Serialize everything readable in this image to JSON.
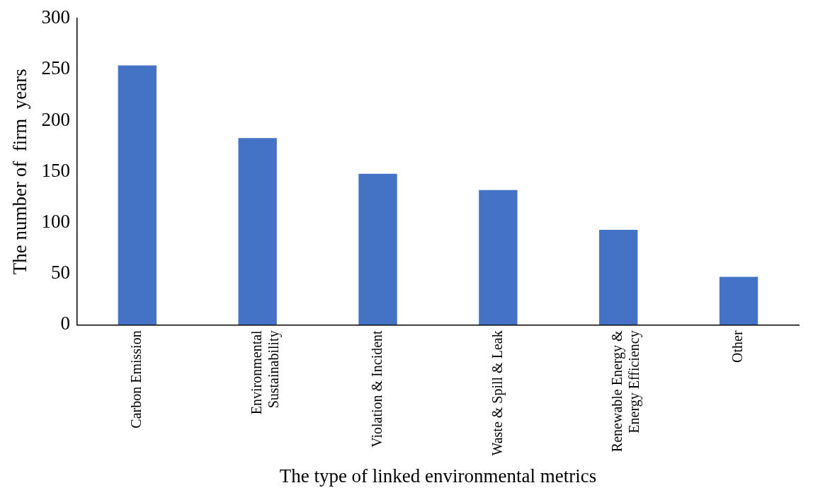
{
  "chart_data": {
    "type": "bar",
    "xlabel": "The type of linked environmental metrics",
    "ylabel": "The number of  firm  years",
    "categories": [
      "Carbon Emission",
      "Environmental\nSustainability",
      "Violation & Incident",
      "Waste & Spill & Leak",
      "Renewable Energy &\nEnergy Efficiency",
      "Other"
    ],
    "values": [
      254,
      183,
      148,
      132,
      93,
      47
    ],
    "color": "#4472c4",
    "ylim": [
      0,
      300
    ],
    "yticks": [
      0,
      50,
      100,
      150,
      200,
      250,
      300
    ],
    "grid": false,
    "legend": false
  }
}
